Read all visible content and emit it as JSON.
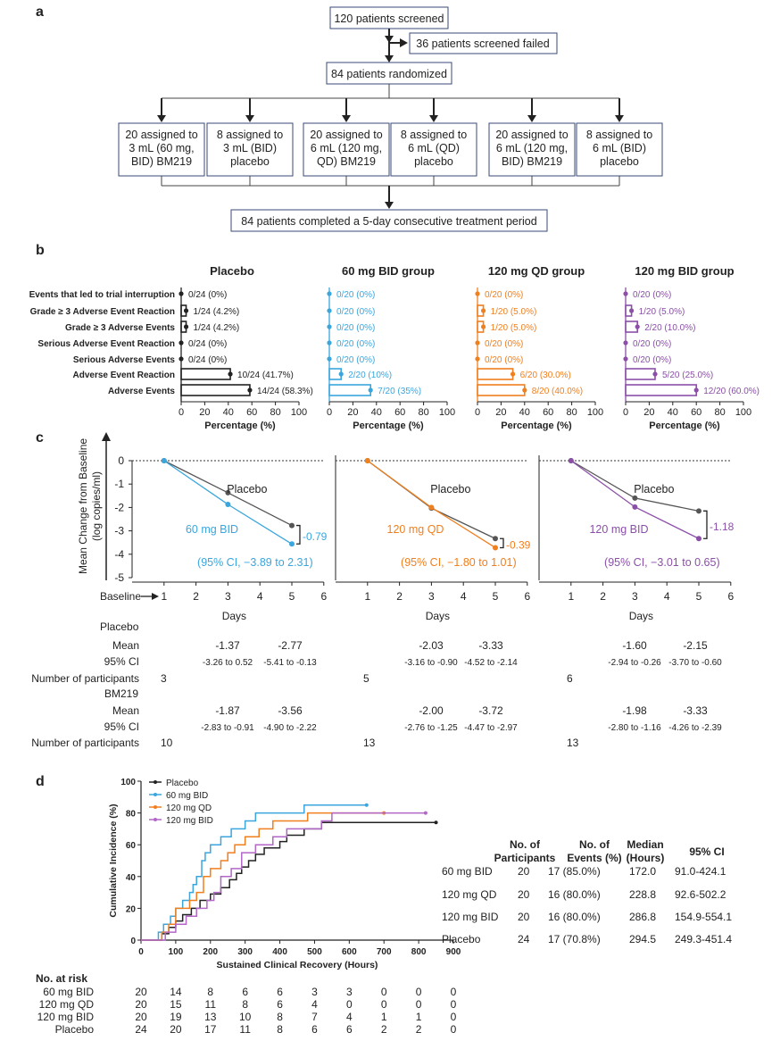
{
  "panel_labels": {
    "a": "a",
    "b": "b",
    "c": "c",
    "d": "d"
  },
  "flow": {
    "screened": "120 patients screened",
    "failed": "36 patients screened failed",
    "randomized": "84 patients randomized",
    "arms": [
      [
        "20 assigned to",
        "3 mL (60 mg,",
        "BID) BM219"
      ],
      [
        "8 assigned to",
        "3 mL (BID)",
        "placebo"
      ],
      [
        "20 assigned to",
        "6 mL (120 mg,",
        "QD) BM219"
      ],
      [
        "8 assigned to",
        "6 mL (QD)",
        "placebo"
      ],
      [
        "20 assigned to",
        "6 mL (120 mg,",
        "BID) BM219"
      ],
      [
        "8 assigned to",
        "6 mL (BID)",
        "placebo"
      ]
    ],
    "completed": "84 patients completed a 5-day consecutive treatment period"
  },
  "colors": {
    "placebo": "#222222",
    "bid60": "#3aa6dd",
    "qd120": "#f07f1e",
    "bid120": "#8b4fa8",
    "grey": "#555555"
  },
  "chart_data": [
    {
      "type": "bar",
      "orientation": "horizontal",
      "categories": [
        "Events that led to trial interruption",
        "Grade ≥ 3 Adverse Event Reaction",
        "Grade ≥ 3 Adverse Events",
        "Serious Adverse Event Reaction",
        "Serious Adverse Events",
        "Adverse Event Reaction",
        "Adverse Events"
      ],
      "xlabel": "Percentage (%)",
      "xlim": [
        0,
        100
      ],
      "xticks": [
        "0",
        "20",
        "40",
        "60",
        "80",
        "100"
      ],
      "series": [
        {
          "name": "Placebo",
          "color": "#222222",
          "values": [
            0,
            4.2,
            4.2,
            0,
            0,
            41.7,
            58.3
          ],
          "labels": [
            "0/24 (0%)",
            "1/24 (4.2%)",
            "1/24 (4.2%)",
            "0/24 (0%)",
            "0/24 (0%)",
            "10/24 (41.7%)",
            "14/24 (58.3%)"
          ]
        },
        {
          "name": "60 mg BID group",
          "color": "#3aa6dd",
          "values": [
            0,
            0,
            0,
            0,
            0,
            10,
            35
          ],
          "labels": [
            "0/20 (0%)",
            "0/20 (0%)",
            "0/20 (0%)",
            "0/20 (0%)",
            "0/20 (0%)",
            "2/20 (10%)",
            "7/20 (35%)"
          ]
        },
        {
          "name": "120 mg QD group",
          "color": "#f07f1e",
          "values": [
            0,
            5,
            5,
            0,
            0,
            30,
            40
          ],
          "labels": [
            "0/20 (0%)",
            "1/20 (5.0%)",
            "1/20 (5.0%)",
            "0/20 (0%)",
            "0/20 (0%)",
            "6/20 (30.0%)",
            "8/20 (40.0%)"
          ]
        },
        {
          "name": "120 mg BID group",
          "color": "#8b4fa8",
          "values": [
            0,
            5,
            10,
            0,
            0,
            25,
            60
          ],
          "labels": [
            "0/20 (0%)",
            "1/20 (5.0%)",
            "2/20 (10.0%)",
            "0/20 (0%)",
            "0/20 (0%)",
            "5/20 (25.0%)",
            "12/20 (60.0%)"
          ]
        }
      ]
    },
    {
      "type": "line",
      "ylabel": "Mean Change from Baseline (log copies/ml)",
      "xlabel": "Days",
      "ylim": [
        -5,
        0
      ],
      "yticks": [
        "0",
        "-1",
        "-2",
        "-3",
        "-4",
        "-5"
      ],
      "xlim": [
        0,
        6
      ],
      "xticks": [
        "0",
        "1",
        "2",
        "3",
        "4",
        "5",
        "6"
      ],
      "baseline_label": "Baseline",
      "panels": [
        {
          "x": [
            1,
            3,
            5
          ],
          "placebo": [
            0,
            -1.37,
            -2.77
          ],
          "drug": [
            0,
            -1.87,
            -3.56
          ],
          "drug_name": "60 mg BID",
          "placebo_name": "Placebo",
          "diff": "-0.79",
          "ci": "(95% CI, −3.89 to 2.31)",
          "color": "#3aa6dd"
        },
        {
          "x": [
            1,
            3,
            5
          ],
          "placebo": [
            0,
            -2.03,
            -3.33
          ],
          "drug": [
            0,
            -2.0,
            -3.72
          ],
          "drug_name": "120 mg QD",
          "placebo_name": "Placebo",
          "diff": "-0.39",
          "ci": "(95% CI, −1.80 to 1.01)",
          "color": "#f07f1e"
        },
        {
          "x": [
            1,
            3,
            5
          ],
          "placebo": [
            0,
            -1.6,
            -2.15
          ],
          "drug": [
            0,
            -1.98,
            -3.33
          ],
          "drug_name": "120 mg BID",
          "placebo_name": "Placebo",
          "diff": "-1.18",
          "ci": "(95% CI, −3.01 to 0.65)",
          "color": "#8b4fa8"
        }
      ]
    },
    {
      "type": "line",
      "subtype": "step",
      "xlabel": "Sustained Clinical Recovery (Hours)",
      "ylabel": "Cumulative Incidence (%)",
      "xlim": [
        0,
        900
      ],
      "ylim": [
        0,
        100
      ],
      "xticks": [
        "0",
        "100",
        "200",
        "300",
        "400",
        "500",
        "600",
        "700",
        "800",
        "900"
      ],
      "yticks": [
        "0",
        "20",
        "40",
        "60",
        "80",
        "100"
      ],
      "legend": "top-left",
      "series": [
        {
          "name": "Placebo",
          "color": "#222222",
          "x": [
            0,
            60,
            80,
            100,
            120,
            145,
            170,
            200,
            230,
            255,
            275,
            290,
            310,
            330,
            355,
            400,
            420,
            470,
            520,
            580,
            850
          ],
          "y": [
            0,
            4,
            8,
            12,
            16,
            20,
            25,
            29,
            33,
            38,
            42,
            46,
            50,
            54,
            58,
            62,
            66,
            70,
            74,
            74,
            74
          ]
        },
        {
          "name": "60 mg BID",
          "color": "#3aa6dd",
          "x": [
            0,
            50,
            65,
            85,
            100,
            120,
            140,
            150,
            160,
            175,
            185,
            200,
            230,
            260,
            300,
            330,
            350,
            420,
            470,
            650
          ],
          "y": [
            0,
            5,
            10,
            15,
            20,
            25,
            30,
            35,
            40,
            50,
            55,
            60,
            65,
            70,
            75,
            80,
            80,
            80,
            85,
            85
          ]
        },
        {
          "name": "120 mg QD",
          "color": "#f07f1e",
          "x": [
            0,
            60,
            80,
            100,
            140,
            160,
            180,
            200,
            230,
            250,
            270,
            300,
            340,
            380,
            420,
            480,
            540,
            700
          ],
          "y": [
            0,
            5,
            10,
            20,
            25,
            30,
            40,
            45,
            50,
            55,
            60,
            65,
            70,
            75,
            75,
            80,
            80,
            80
          ]
        },
        {
          "name": "120 mg BID",
          "color": "#b267c8",
          "x": [
            0,
            70,
            100,
            130,
            160,
            190,
            210,
            230,
            260,
            290,
            330,
            380,
            420,
            520,
            550,
            820
          ],
          "y": [
            0,
            5,
            10,
            15,
            20,
            25,
            30,
            40,
            45,
            55,
            60,
            65,
            70,
            75,
            80,
            80
          ]
        }
      ]
    }
  ],
  "stats_c": {
    "placebo_label": "Placebo",
    "bm_label": "BM219",
    "mean_label": "Mean",
    "ci_label": "95% CI",
    "n_label": "Number of participants",
    "groups": [
      {
        "placebo_mean": [
          "-1.37",
          "-2.77"
        ],
        "placebo_ci": [
          "-3.26 to 0.52",
          "-5.41 to -0.13"
        ],
        "placebo_n": "3",
        "bm_mean": [
          "-1.87",
          "-3.56"
        ],
        "bm_ci": [
          "-2.83 to -0.91",
          "-4.90 to -2.22"
        ],
        "bm_n": "10"
      },
      {
        "placebo_mean": [
          "-2.03",
          "-3.33"
        ],
        "placebo_ci": [
          "-3.16 to -0.90",
          "-4.52 to -2.14"
        ],
        "placebo_n": "5",
        "bm_mean": [
          "-2.00",
          "-3.72"
        ],
        "bm_ci": [
          "-2.76 to -1.25",
          "-4.47 to -2.97"
        ],
        "bm_n": "13"
      },
      {
        "placebo_mean": [
          "-1.60",
          "-2.15"
        ],
        "placebo_ci": [
          "-2.94 to -0.26",
          "-3.70 to -0.60"
        ],
        "placebo_n": "6",
        "bm_mean": [
          "-1.98",
          "-3.33"
        ],
        "bm_ci": [
          "-2.80 to -1.16",
          "-4.26 to -2.39"
        ],
        "bm_n": "13"
      }
    ]
  },
  "table_d": {
    "headers": [
      [
        "No. of",
        "Participants"
      ],
      [
        "No. of",
        "Events (%)"
      ],
      [
        "Median",
        "(Hours)"
      ],
      [
        "95% CI"
      ]
    ],
    "rows": [
      [
        "60 mg BID",
        "20",
        "17 (85.0%)",
        "172.0",
        "91.0-424.1"
      ],
      [
        "120 mg QD",
        "20",
        "16 (80.0%)",
        "228.8",
        "92.6-502.2"
      ],
      [
        "120 mg BID",
        "20",
        "16 (80.0%)",
        "286.8",
        "154.9-554.1"
      ],
      [
        "Placebo",
        "24",
        "17 (70.8%)",
        "294.5",
        "249.3-451.4"
      ]
    ]
  },
  "at_risk": {
    "title": "No. at risk",
    "rows": [
      {
        "label": "60 mg BID",
        "values": [
          "20",
          "14",
          "8",
          "6",
          "6",
          "3",
          "3",
          "0",
          "0",
          "0"
        ]
      },
      {
        "label": "120 mg QD",
        "values": [
          "20",
          "15",
          "11",
          "8",
          "6",
          "4",
          "0",
          "0",
          "0",
          "0"
        ]
      },
      {
        "label": "120 mg BID",
        "values": [
          "20",
          "19",
          "13",
          "10",
          "8",
          "7",
          "4",
          "1",
          "1",
          "0"
        ]
      },
      {
        "label": "Placebo",
        "values": [
          "24",
          "20",
          "17",
          "11",
          "8",
          "6",
          "6",
          "2",
          "2",
          "0"
        ]
      }
    ]
  }
}
